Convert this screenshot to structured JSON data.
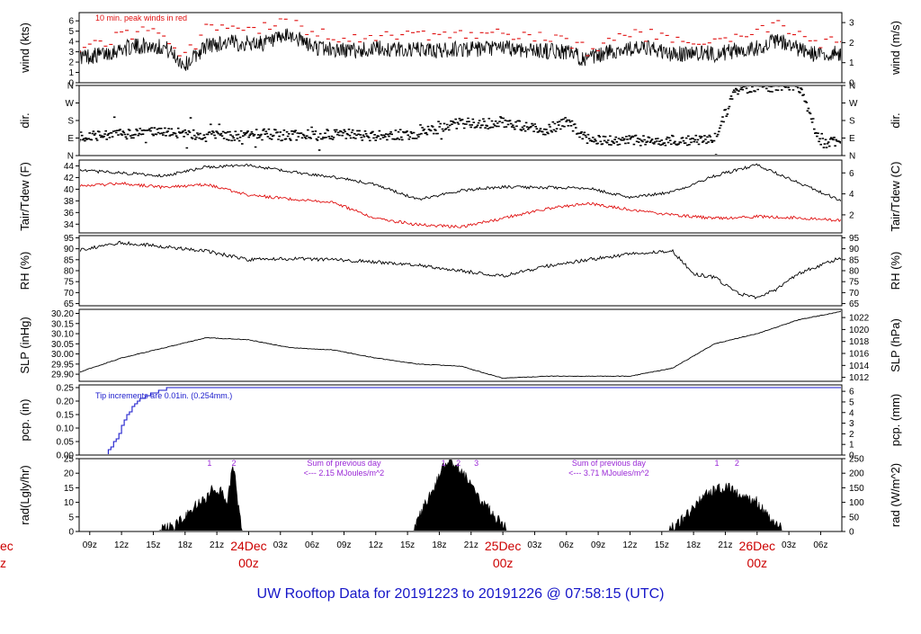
{
  "colors": {
    "axis": "#000000",
    "tair": "#000000",
    "tdew": "#e01010",
    "peak": "#e01010",
    "pcp": "#1a1acc",
    "rad": "#000000",
    "note": "#9a28d6",
    "day": "#cc0000",
    "title": "#1515c8"
  },
  "chart_data": {
    "title": "UW Rooftop Data for 20191223  to  20191226 @ 07:58:15  (UTC)",
    "x_axis": {
      "ticks": [
        "09z",
        "12z",
        "15z",
        "18z",
        "21z",
        "00z",
        "03z",
        "06z",
        "09z",
        "12z",
        "15z",
        "18z",
        "21z",
        "00z",
        "03z",
        "06z",
        "09z",
        "12z",
        "15z",
        "18z",
        "21z",
        "00z",
        "03z",
        "06z"
      ],
      "tick_hours": [
        9,
        12,
        15,
        18,
        21,
        24,
        27,
        30,
        33,
        36,
        39,
        42,
        45,
        48,
        51,
        54,
        57,
        60,
        63,
        66,
        69,
        72,
        75,
        78
      ],
      "day_labels": [
        {
          "date": "24Dec",
          "hour": "00z",
          "at_hour": 24
        },
        {
          "date": "25Dec",
          "hour": "00z",
          "at_hour": 48
        },
        {
          "date": "26Dec",
          "hour": "00z",
          "at_hour": 72
        }
      ],
      "edge_fragment": {
        "date": "ec",
        "hour": "z"
      },
      "range_hours": [
        8,
        80
      ]
    },
    "panels": [
      {
        "id": "wind",
        "type": "line",
        "ylabel": "wind (kts)",
        "y2label": "wind (m/s)",
        "ylim": [
          0,
          6.8
        ],
        "yticks": [
          0,
          1,
          2,
          3,
          4,
          5,
          6
        ],
        "y2ticks": [
          0,
          1,
          2,
          3
        ],
        "y2_factor": 1.944,
        "annotation": "10 min. peak winds in red",
        "series": [
          {
            "name": "wind",
            "style": "line",
            "x": [
              8,
              10,
              12,
              14,
              16,
              18,
              20,
              22,
              24,
              26,
              28,
              30,
              32,
              34,
              36,
              38,
              40,
              42,
              44,
              46,
              48,
              50,
              52,
              54,
              56,
              58,
              60,
              62,
              64,
              66,
              68,
              70,
              72,
              74,
              76,
              78,
              80
            ],
            "values": [
              2.5,
              2.7,
              3.3,
              3.6,
              3.5,
              1.7,
              3.6,
              3.9,
              3.8,
              3.9,
              4.6,
              3.5,
              3.2,
              3.1,
              3.3,
              3.2,
              3.2,
              3.1,
              3.3,
              3.2,
              3.4,
              3.2,
              3.1,
              3.0,
              2.2,
              3.0,
              3.3,
              3.3,
              2.7,
              2.9,
              2.8,
              3.1,
              3.4,
              4.1,
              3.2,
              2.6,
              2.9
            ]
          },
          {
            "name": "peak",
            "style": "dashes",
            "x": [
              8,
              10,
              12,
              14,
              16,
              18,
              20,
              22,
              24,
              26,
              28,
              30,
              32,
              34,
              36,
              38,
              40,
              42,
              44,
              46,
              48,
              50,
              52,
              54,
              56,
              58,
              60,
              62,
              64,
              66,
              68,
              70,
              72,
              74,
              76,
              78,
              80
            ],
            "values": [
              3.5,
              3.7,
              4.6,
              5.0,
              4.9,
              2.6,
              5.1,
              5.4,
              5.2,
              5.3,
              6.4,
              4.8,
              4.5,
              4.4,
              4.6,
              4.5,
              4.5,
              4.3,
              4.6,
              4.5,
              4.7,
              4.5,
              4.3,
              4.2,
              3.2,
              4.2,
              4.6,
              4.6,
              3.8,
              4.1,
              3.9,
              4.3,
              4.8,
              5.8,
              4.5,
              3.7,
              4.1
            ]
          }
        ]
      },
      {
        "id": "dir",
        "type": "scatter",
        "ylabel": "dir.",
        "y2label": "dir.",
        "ylim": [
          0,
          360
        ],
        "yticks": [
          "N",
          "E",
          "S",
          "W",
          "N"
        ],
        "ytick_values": [
          0,
          90,
          180,
          270,
          360
        ],
        "series": [
          {
            "name": "dir",
            "x": [
              8,
              10,
              12,
              14,
              16,
              18,
              20,
              22,
              24,
              26,
              28,
              30,
              32,
              34,
              36,
              38,
              40,
              42,
              44,
              46,
              48,
              50,
              52,
              54,
              56,
              58,
              60,
              62,
              64,
              66,
              68,
              70,
              72,
              74,
              76,
              78,
              80
            ],
            "values": [
              100,
              100,
              110,
              115,
              120,
              115,
              100,
              95,
              105,
              110,
              100,
              105,
              110,
              108,
              100,
              105,
              110,
              140,
              170,
              160,
              175,
              150,
              130,
              175,
              80,
              75,
              80,
              78,
              78,
              80,
              90,
              340,
              355,
              350,
              355,
              60,
              70
            ]
          }
        ]
      },
      {
        "id": "temp",
        "type": "line",
        "ylabel": "Tair/Tdew (F)",
        "y2label": "Tair/Tdew (C)",
        "ylim": [
          32.5,
          45
        ],
        "yticks": [
          34,
          36,
          38,
          40,
          42,
          44
        ],
        "y2ticks": [
          2,
          4,
          6
        ],
        "series": [
          {
            "name": "Tair",
            "color_key": "tair",
            "x": [
              8,
              12,
              16,
              20,
              24,
              28,
              32,
              36,
              40,
              44,
              48,
              52,
              56,
              60,
              64,
              68,
              72,
              76,
              80
            ],
            "values": [
              43.2,
              42.8,
              42.3,
              43.8,
              44.1,
              43.0,
              42.1,
              40.8,
              38.2,
              39.8,
              40.4,
              40.3,
              40.2,
              38.6,
              39.5,
              42.3,
              44.2,
              41.0,
              38.0
            ]
          },
          {
            "name": "Tdew",
            "color_key": "tdew",
            "x": [
              8,
              12,
              16,
              20,
              24,
              28,
              32,
              36,
              40,
              44,
              48,
              52,
              56,
              60,
              64,
              68,
              72,
              76,
              80
            ],
            "values": [
              40.5,
              41.0,
              40.3,
              40.8,
              39.0,
              38.3,
              37.7,
              35.0,
              33.9,
              33.5,
              35.0,
              36.6,
              37.6,
              36.5,
              35.6,
              35.0,
              35.3,
              35.1,
              34.6
            ]
          }
        ]
      },
      {
        "id": "rh",
        "type": "line",
        "ylabel": "RH (%)",
        "y2label": "RH (%)",
        "ylim": [
          64,
          96
        ],
        "yticks": [
          65,
          70,
          75,
          80,
          85,
          90,
          95
        ],
        "series": [
          {
            "name": "RH",
            "x": [
              8,
              12,
              16,
              20,
              24,
              28,
              32,
              36,
              40,
              44,
              48,
              52,
              56,
              60,
              64,
              66,
              68,
              70,
              72,
              74,
              76,
              80
            ],
            "values": [
              89.5,
              92.8,
              91.0,
              89.0,
              85.0,
              85.4,
              85.0,
              84.0,
              82.5,
              80.0,
              77.5,
              82.0,
              85.0,
              87.5,
              89.0,
              78.5,
              77.0,
              70.0,
              67.5,
              72.0,
              79.0,
              86.0
            ]
          }
        ]
      },
      {
        "id": "slp",
        "type": "line",
        "ylabel": "SLP (inHg)",
        "y2label": "SLP (hPa)",
        "ylim": [
          29.865,
          30.22
        ],
        "yticks": [
          "29.90",
          "29.95",
          "30.00",
          "30.05",
          "30.10",
          "30.15",
          "30.20"
        ],
        "y2ticks": [
          1012,
          1014,
          1016,
          1018,
          1020,
          1022
        ],
        "series": [
          {
            "name": "SLP",
            "x": [
              8,
              12,
              16,
              20,
              24,
              28,
              32,
              36,
              40,
              44,
              48,
              52,
              56,
              60,
              64,
              68,
              72,
              76,
              80
            ],
            "values": [
              29.91,
              29.98,
              30.03,
              30.08,
              30.07,
              30.03,
              30.02,
              29.98,
              29.95,
              29.94,
              29.88,
              29.89,
              29.89,
              29.89,
              29.93,
              30.05,
              30.1,
              30.17,
              30.21
            ]
          }
        ]
      },
      {
        "id": "pcp",
        "type": "line",
        "ylabel": "pcp. (in)",
        "y2label": "pcp. (mm)",
        "ylim": [
          0,
          0.26
        ],
        "yticks": [
          "0.00",
          "0.05",
          "0.10",
          "0.15",
          "0.20",
          "0.25"
        ],
        "y2ticks": [
          0,
          1,
          2,
          3,
          4,
          5,
          6
        ],
        "annotation": "Tip increments are 0.01in. (0.254mm.)",
        "series": [
          {
            "name": "pcp",
            "x": [
              8,
              10.5,
              11.5,
              12.5,
              13.5,
              15,
              16.5,
              80
            ],
            "values": [
              0.0,
              0.0,
              0.06,
              0.15,
              0.2,
              0.23,
              0.25,
              0.25
            ]
          }
        ]
      },
      {
        "id": "rad",
        "type": "area",
        "ylabel": "rad(Lgly/hr)",
        "y2label": "rad (W/m^2)",
        "ylim": [
          0,
          25
        ],
        "yticks": [
          0,
          5,
          10,
          15,
          20,
          25
        ],
        "y2ticks": [
          0,
          50,
          100,
          150,
          200,
          250
        ],
        "notes": [
          {
            "text": "Sum of previous day",
            "text2": "<--- 2.15 MJoules/m^2",
            "at_hour": 33
          },
          {
            "text": "Sum of previous day",
            "text2": "<--- 3.71 MJoules/m^2",
            "at_hour": 58
          }
        ],
        "markers": [
          {
            "label": "1",
            "at_hour": 20.3
          },
          {
            "label": "2",
            "at_hour": 22.6
          },
          {
            "label": "1",
            "at_hour": 42.4
          },
          {
            "label": "2",
            "at_hour": 43.8
          },
          {
            "label": "3",
            "at_hour": 45.5
          },
          {
            "label": "1",
            "at_hour": 68.2
          },
          {
            "label": "2",
            "at_hour": 70.1
          }
        ],
        "series": [
          {
            "name": "rad",
            "x": [
              15.3,
              17,
              18,
              19,
              20,
              20.5,
              21,
              21.5,
              22,
              22.3,
              22.6,
              23,
              23.4,
              39.5,
              40.5,
              41.5,
              42.3,
              43,
              44,
              45,
              46,
              47,
              48.5,
              63.5,
              65,
              66,
              67,
              68,
              69,
              70,
              71,
              72,
              73,
              74.5
            ],
            "values": [
              0,
              2,
              5,
              9,
              11,
              15,
              12,
              14,
              10,
              18,
              22,
              9,
              0,
              0,
              8,
              15,
              22,
              24,
              21,
              16,
              10,
              6,
              0,
              0,
              4,
              8,
              12,
              14,
              15,
              14,
              12,
              10,
              5,
              0
            ]
          }
        ]
      }
    ]
  }
}
